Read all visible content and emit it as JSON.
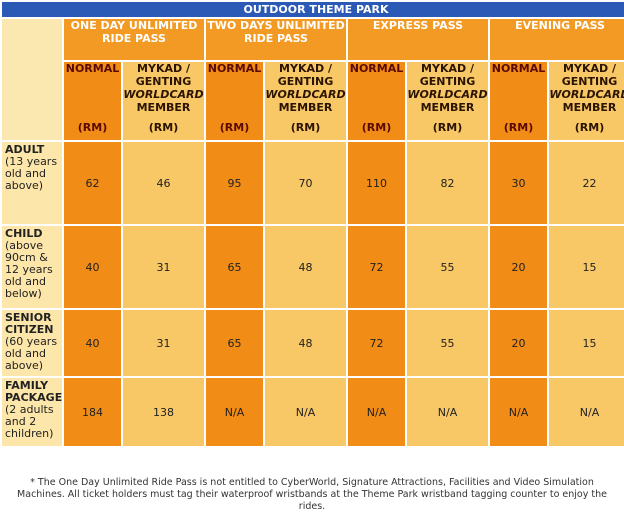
{
  "title": "OUTDOOR THEME PARK",
  "passes": [
    {
      "name": "ONE DAY UNLIMITED RIDE PASS"
    },
    {
      "name": "TWO DAYS UNLIMITED RIDE PASS"
    },
    {
      "name": "EXPRESS PASS"
    },
    {
      "name": "EVENING PASS"
    }
  ],
  "sub": {
    "normal": "NORMAL",
    "member_1": "MYKAD /",
    "member_2": "GENTING",
    "member_3": "WORLDCARD",
    "member_4": "MEMBER",
    "rm": "(RM)"
  },
  "rows": [
    {
      "label": "ADULT",
      "desc": "(13 years old and above)",
      "values": [
        "62",
        "46",
        "95",
        "70",
        "110",
        "82",
        "30",
        "22"
      ]
    },
    {
      "label": "CHILD",
      "desc": "(above 90cm & 12 years old and below)",
      "values": [
        "40",
        "31",
        "65",
        "48",
        "72",
        "55",
        "20",
        "15"
      ]
    },
    {
      "label": "SENIOR CITIZEN",
      "desc": "(60 years old and above)",
      "values": [
        "40",
        "31",
        "65",
        "48",
        "72",
        "55",
        "20",
        "15"
      ]
    },
    {
      "label": "FAMILY PACKAGE",
      "desc": "(2 adults and 2 children)",
      "values": [
        "184",
        "138",
        "N/A",
        "N/A",
        "N/A",
        "N/A",
        "N/A",
        "N/A"
      ]
    }
  ],
  "footnote": "* The One Day Unlimited Ride Pass is not entitled to CyberWorld, Signature Attractions, Facilities and Video Simulation Machines. All ticket holders must tag their waterproof wristbands at the Theme Park wristband tagging counter to enjoy the rides.",
  "colors": {
    "title_bg": "#2a59b6",
    "pass_header": "#f39a25",
    "normal_col": "#f18c17",
    "member_col": "#f8c766",
    "label_bg": "#fde6a9"
  }
}
